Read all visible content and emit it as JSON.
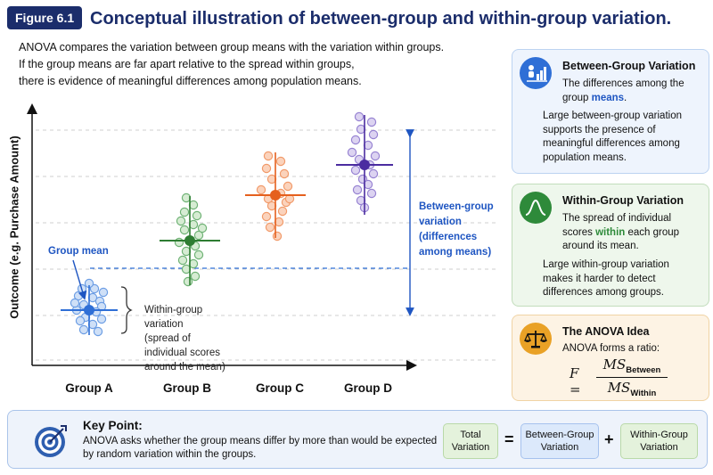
{
  "figure": {
    "badge": "Figure 6.1",
    "title": "Conceptual illustration of between-group and within-group variation."
  },
  "intro_lines": [
    "ANOVA compares the variation between group means with the variation within groups.",
    "If the group means are far apart relative to the spread within groups,",
    "there is evidence of meaningful differences among population means."
  ],
  "chart": {
    "ylabel": "Outcome (e.g. Purchase Amount)",
    "groups": [
      {
        "label": "Group A",
        "color": "#2f6fd6",
        "light": "#cfe0f7",
        "stroke": "#6d9ee4"
      },
      {
        "label": "Group B",
        "color": "#2e7d32",
        "light": "#d6ecd3",
        "stroke": "#6fb275"
      },
      {
        "label": "Group C",
        "color": "#e5601e",
        "light": "#fbd3bc",
        "stroke": "#f19a6a"
      },
      {
        "label": "Group D",
        "color": "#4b2ca0",
        "light": "#dcd3f1",
        "stroke": "#9783d2"
      }
    ],
    "annotations": {
      "group_mean": "Group mean",
      "within_lines": [
        "Within-group",
        "variation",
        "(spread of",
        "individual scores",
        "around the mean)"
      ],
      "between_lines": [
        "Between-group",
        "variation",
        "(differences",
        "among means)"
      ]
    }
  },
  "cards": {
    "between": {
      "title": "Between-Group Variation",
      "sub_pre": "The differences among the group ",
      "sub_hl": "means",
      "sub_post": ".",
      "body": "Large between-group variation supports the presence of meaningful differences among population means."
    },
    "within": {
      "title": "Within-Group Variation",
      "sub_pre": "The spread of individual scores ",
      "sub_hl": "within",
      "sub_post": " each group around its mean.",
      "body": "Large within-group variation makes it harder to detect differences among groups."
    },
    "idea": {
      "title": "The ANOVA Idea",
      "sub": "ANOVA forms a ratio:",
      "f": "F =",
      "num": "MS",
      "num_sub": "Between",
      "den": "MS",
      "den_sub": "Within"
    }
  },
  "keypoint": {
    "title": "Key Point:",
    "lines": [
      "ANOVA asks whether the group means differ by more than would be expected",
      "by random variation within the groups."
    ],
    "total": [
      "Total",
      "Variation"
    ],
    "eq": "=",
    "between": [
      "Between-Group",
      "Variation"
    ],
    "plus": "+",
    "within": [
      "Within-Group",
      "Variation"
    ]
  }
}
